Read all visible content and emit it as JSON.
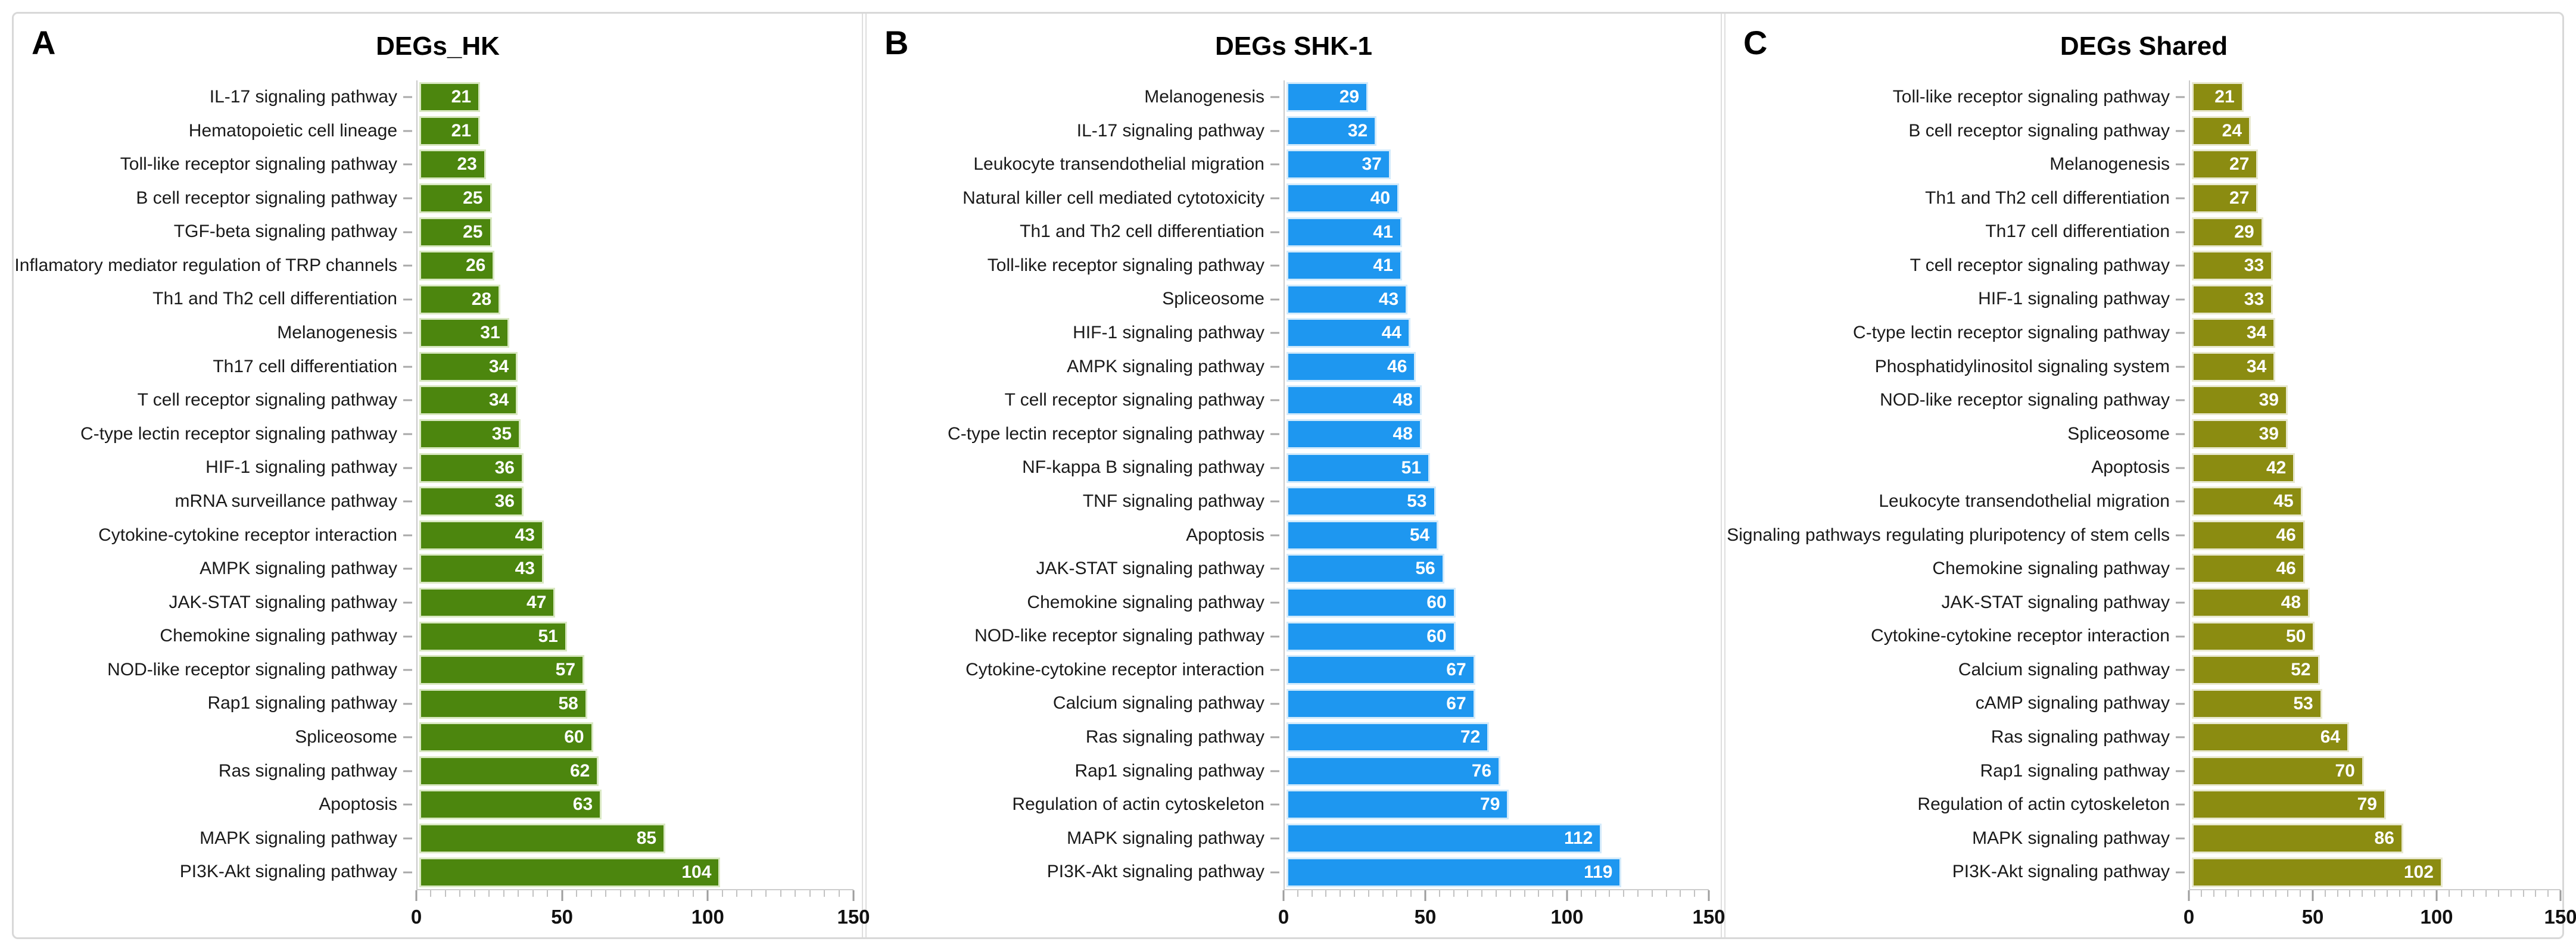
{
  "figure": {
    "panel_letters": [
      "A",
      "B",
      "C"
    ],
    "style": {
      "background": "#ffffff",
      "figure_border_color": "#d8d8d8",
      "divider_color": "#dedede",
      "axis_line_color": "#cdcdcd",
      "tick_color": "#c2c2c2",
      "major_tick_color": "#9e9e9e",
      "category_label_color": "#1a1a1a",
      "axis_label_color": "#111111",
      "value_label_color": "#ffffff"
    }
  },
  "chart_data": [
    {
      "type": "bar",
      "orientation": "horizontal",
      "title": "DEGs_HK",
      "bar_color": "#4c860e",
      "bar_border_color": "#d9e8c2",
      "xlim": [
        0,
        150
      ],
      "x_major_ticks": [
        0,
        50,
        100,
        150
      ],
      "x_minor_step": 5,
      "grid": false,
      "legend": false,
      "categories": [
        "IL-17 signaling pathway",
        "Hematopoietic cell lineage",
        "Toll-like receptor signaling pathway",
        "B cell receptor signaling pathway",
        "TGF-beta signaling pathway",
        "Inflamatory mediator regulation of TRP channels",
        "Th1 and Th2 cell differentiation",
        "Melanogenesis",
        "Th17 cell differentiation",
        "T cell receptor signaling pathway",
        "C-type lectin receptor signaling pathway",
        "HIF-1 signaling pathway",
        "mRNA surveillance pathway",
        "Cytokine-cytokine receptor interaction",
        "AMPK signaling pathway",
        "JAK-STAT signaling pathway",
        "Chemokine signaling pathway",
        "NOD-like receptor signaling pathway",
        "Rap1 signaling pathway",
        "Spliceosome",
        "Ras signaling pathway",
        "Apoptosis",
        "MAPK signaling pathway",
        "PI3K-Akt signaling pathway"
      ],
      "values": [
        21,
        21,
        23,
        25,
        25,
        26,
        28,
        31,
        34,
        34,
        35,
        36,
        36,
        43,
        43,
        47,
        51,
        57,
        58,
        60,
        62,
        63,
        85,
        104
      ]
    },
    {
      "type": "bar",
      "orientation": "horizontal",
      "title": "DEGs SHK-1",
      "bar_color": "#1e97f0",
      "bar_border_color": "#d2eafb",
      "xlim": [
        0,
        150
      ],
      "x_major_ticks": [
        0,
        50,
        100,
        150
      ],
      "x_minor_step": 5,
      "grid": false,
      "legend": false,
      "categories": [
        "Melanogenesis",
        "IL-17 signaling pathway",
        "Leukocyte transendothelial migration",
        "Natural killer cell mediated cytotoxicity",
        "Th1 and Th2 cell differentiation",
        "Toll-like receptor signaling pathway",
        "Spliceosome",
        "HIF-1 signaling pathway",
        "AMPK signaling pathway",
        "T cell receptor signaling pathway",
        "C-type lectin receptor signaling pathway",
        "NF-kappa B signaling pathway",
        "TNF signaling pathway",
        "Apoptosis",
        "JAK-STAT signaling pathway",
        "Chemokine signaling pathway",
        "NOD-like receptor signaling pathway",
        "Cytokine-cytokine receptor interaction",
        "Calcium signaling pathway",
        "Ras signaling pathway",
        "Rap1 signaling pathway",
        "Regulation of actin cytoskeleton",
        "MAPK signaling pathway",
        "PI3K-Akt signaling pathway"
      ],
      "values": [
        29,
        32,
        37,
        40,
        41,
        41,
        43,
        44,
        46,
        48,
        48,
        51,
        53,
        54,
        56,
        60,
        60,
        67,
        67,
        72,
        76,
        79,
        112,
        119
      ]
    },
    {
      "type": "bar",
      "orientation": "horizontal",
      "title": "DEGs Shared",
      "bar_color": "#8b8c11",
      "bar_border_color": "#e8e8cf",
      "xlim": [
        0,
        150
      ],
      "x_major_ticks": [
        0,
        50,
        100,
        150
      ],
      "x_minor_step": 5,
      "grid": false,
      "legend": false,
      "categories": [
        "Toll-like receptor signaling pathway",
        "B cell receptor signaling pathway",
        "Melanogenesis",
        "Th1 and Th2 cell differentiation",
        "Th17 cell differentiation",
        "T cell receptor signaling pathway",
        "HIF-1 signaling pathway",
        "C-type lectin receptor signaling pathway",
        "Phosphatidylinositol signaling system",
        "NOD-like receptor signaling pathway",
        "Spliceosome",
        "Apoptosis",
        "Leukocyte transendothelial migration",
        "Signaling pathways regulating pluripotency of stem cells",
        "Chemokine signaling pathway",
        "JAK-STAT signaling pathway",
        "Cytokine-cytokine receptor interaction",
        "Calcium signaling pathway",
        "cAMP signaling pathway",
        "Ras signaling pathway",
        "Rap1 signaling pathway",
        "Regulation of actin cytoskeleton",
        "MAPK signaling pathway",
        "PI3K-Akt signaling pathway"
      ],
      "values": [
        21,
        24,
        27,
        27,
        29,
        33,
        33,
        34,
        34,
        39,
        39,
        42,
        45,
        46,
        46,
        48,
        50,
        52,
        53,
        64,
        70,
        79,
        86,
        102
      ]
    }
  ]
}
